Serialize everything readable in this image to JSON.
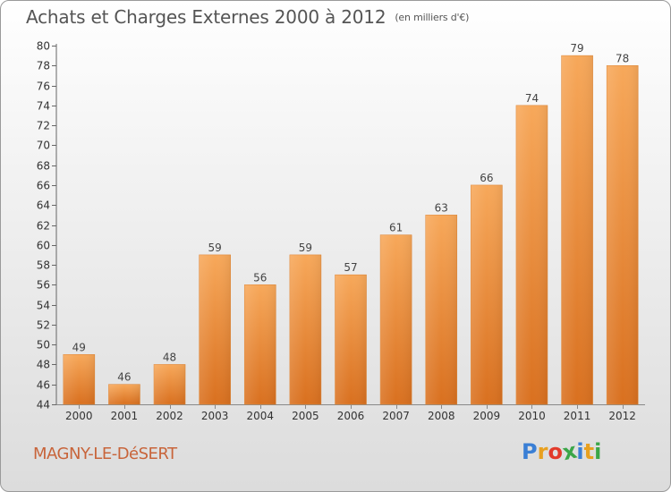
{
  "header": {
    "title": "Achats et Charges Externes 2000 à 2012",
    "unit": "(en milliers d'€)"
  },
  "footer": {
    "place": "MAGNY-LE-DéSERT",
    "logo_letters": [
      "P",
      "r",
      "o",
      "x",
      "i",
      "t",
      "i"
    ],
    "logo_colors": [
      "#3a7fd5",
      "#e8a020",
      "#e23a2a",
      "#3aa648",
      "#3a7fd5",
      "#e8a020",
      "#3aa648"
    ]
  },
  "chart_data": {
    "type": "bar",
    "categories": [
      "2000",
      "2001",
      "2002",
      "2003",
      "2004",
      "2005",
      "2006",
      "2007",
      "2008",
      "2009",
      "2010",
      "2011",
      "2012"
    ],
    "values": [
      49,
      46,
      48,
      59,
      56,
      59,
      57,
      61,
      63,
      66,
      74,
      79,
      78
    ],
    "ylim": [
      44,
      80
    ],
    "yticks": [
      44,
      46,
      48,
      50,
      52,
      54,
      56,
      58,
      60,
      62,
      64,
      66,
      68,
      70,
      72,
      74,
      76,
      78,
      80
    ],
    "grid": false,
    "bar_color_top": "#f7a85a",
    "bar_color_bottom": "#d9701f"
  }
}
